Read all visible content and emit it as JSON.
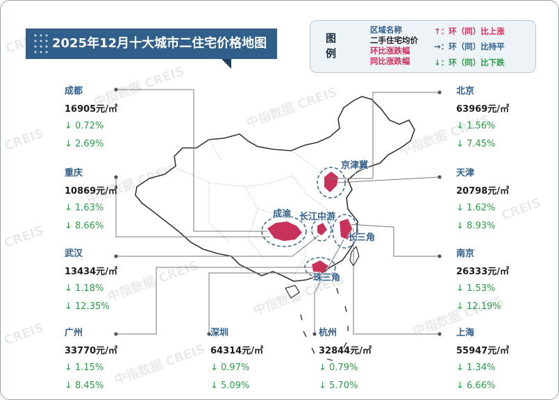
{
  "title": "2025年12月十大城市二住宅价格地图",
  "legend": {
    "header": "图例",
    "items_left": [
      "区域名称",
      "二手住宅均价",
      "环比涨跌幅",
      "同比涨跌幅"
    ],
    "items_right": [
      "↑：环（同）比上涨",
      "→：环（同）比持平",
      "↓：环（同）比下跌"
    ]
  },
  "watermark": "中指数据 CREIS",
  "watermark_short": "CREIS",
  "regions": {
    "jingjinji": "京津冀",
    "chengyu": "成渝",
    "changjiang": "长江中游",
    "changsanjiao": "长三角",
    "zhusanjiao": "珠三角"
  },
  "cities": [
    {
      "key": "chengdu",
      "name": "成都",
      "price": "16905元/㎡",
      "mom": "↓ 0.72%",
      "yoy": "↓ 2.69%"
    },
    {
      "key": "chongqing",
      "name": "重庆",
      "price": "10869元/㎡",
      "mom": "↓ 1.63%",
      "yoy": "↓ 8.66%"
    },
    {
      "key": "wuhan",
      "name": "武汉",
      "price": "13434元/㎡",
      "mom": "↓ 1.18%",
      "yoy": "↓ 12.35%"
    },
    {
      "key": "guangzhou",
      "name": "广州",
      "price": "33770元/㎡",
      "mom": "↓ 1.15%",
      "yoy": "↓ 8.45%"
    },
    {
      "key": "shenzhen",
      "name": "深圳",
      "price": "64314元/㎡",
      "mom": "↓ 0.97%",
      "yoy": "↓ 5.09%"
    },
    {
      "key": "hangzhou",
      "name": "杭州",
      "price": "32844元/㎡",
      "mom": "↓ 0.79%",
      "yoy": "↓ 5.70%"
    },
    {
      "key": "shanghai",
      "name": "上海",
      "price": "55947元/㎡",
      "mom": "↓ 1.34%",
      "yoy": "↓ 6.66%"
    },
    {
      "key": "nanjing",
      "name": "南京",
      "price": "26333元/㎡",
      "mom": "↓ 1.53%",
      "yoy": "↓ 12.19%"
    },
    {
      "key": "tianjin",
      "name": "天津",
      "price": "20798元/㎡",
      "mom": "↓ 1.62%",
      "yoy": "↓ 8.93%"
    },
    {
      "key": "beijing",
      "name": "北京",
      "price": "63969元/㎡",
      "mom": "↓ 1.56%",
      "yoy": "↓ 7.45%"
    }
  ],
  "colors": {
    "banner": "#2f5f8a",
    "city_name": "#2f5f8a",
    "region_fill": "#c8315a",
    "decline": "#2e9a4a",
    "rise": "#d0305a",
    "flat": "#2f5f8a"
  }
}
